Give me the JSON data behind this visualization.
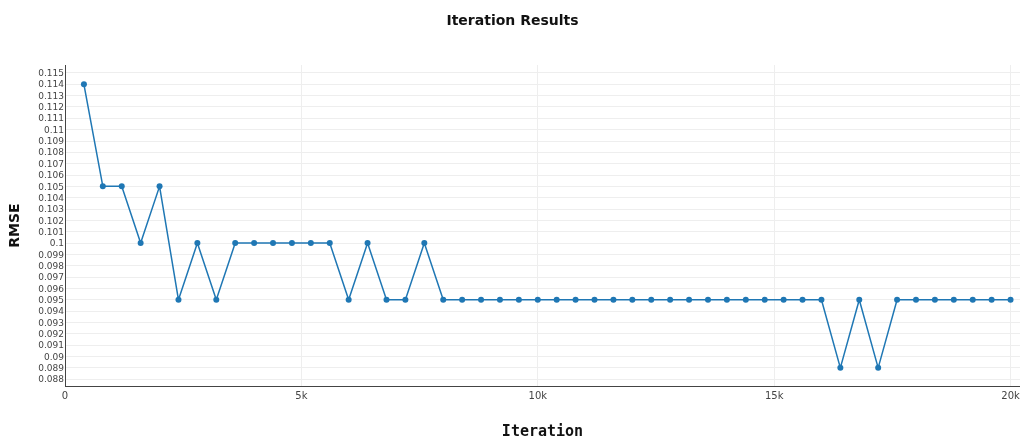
{
  "chart_data": {
    "type": "line",
    "title": "Iteration Results",
    "xlabel": "Iteration",
    "ylabel": "RMSE",
    "x": [
      400,
      800,
      1200,
      1600,
      2000,
      2400,
      2800,
      3200,
      3600,
      4000,
      4400,
      4800,
      5200,
      5600,
      6000,
      6400,
      6800,
      7200,
      7600,
      8000,
      8400,
      8800,
      9200,
      9600,
      10000,
      10400,
      10800,
      11200,
      11600,
      12000,
      12400,
      12800,
      13200,
      13600,
      14000,
      14400,
      14800,
      15200,
      15600,
      16000,
      16400,
      16800,
      17200,
      17600,
      18000,
      18400,
      18800,
      19200,
      19600,
      20000
    ],
    "series": [
      {
        "color": "#1f77b4",
        "values": [
          0.114,
          0.105,
          0.105,
          0.1,
          0.105,
          0.095,
          0.1,
          0.095,
          0.1,
          0.1,
          0.1,
          0.1,
          0.1,
          0.1,
          0.095,
          0.1,
          0.095,
          0.095,
          0.1,
          0.095,
          0.095,
          0.095,
          0.095,
          0.095,
          0.095,
          0.095,
          0.095,
          0.095,
          0.095,
          0.095,
          0.095,
          0.095,
          0.095,
          0.095,
          0.095,
          0.095,
          0.095,
          0.095,
          0.095,
          0.095,
          0.089,
          0.095,
          0.089,
          0.095,
          0.095,
          0.095,
          0.095,
          0.095,
          0.095,
          0.095
        ]
      }
    ],
    "xlim": [
      0,
      20200
    ],
    "xticks": [
      0,
      {
        "value": 5000,
        "label": "5k"
      },
      {
        "value": 10000,
        "label": "10k"
      },
      {
        "value": 15000,
        "label": "15k"
      },
      {
        "value": 20000,
        "label": "20k"
      }
    ],
    "ylim": [
      0.0874,
      0.1157
    ],
    "yticks": [
      0.088,
      0.089,
      0.09,
      0.091,
      0.092,
      0.093,
      0.094,
      0.095,
      0.096,
      0.097,
      0.098,
      0.099,
      0.1,
      0.101,
      0.102,
      0.103,
      0.104,
      0.105,
      0.106,
      0.107,
      0.108,
      0.109,
      0.11,
      0.111,
      0.112,
      0.113,
      0.114,
      0.115
    ],
    "grid": true,
    "marker": "circle",
    "line_style": "solid"
  }
}
